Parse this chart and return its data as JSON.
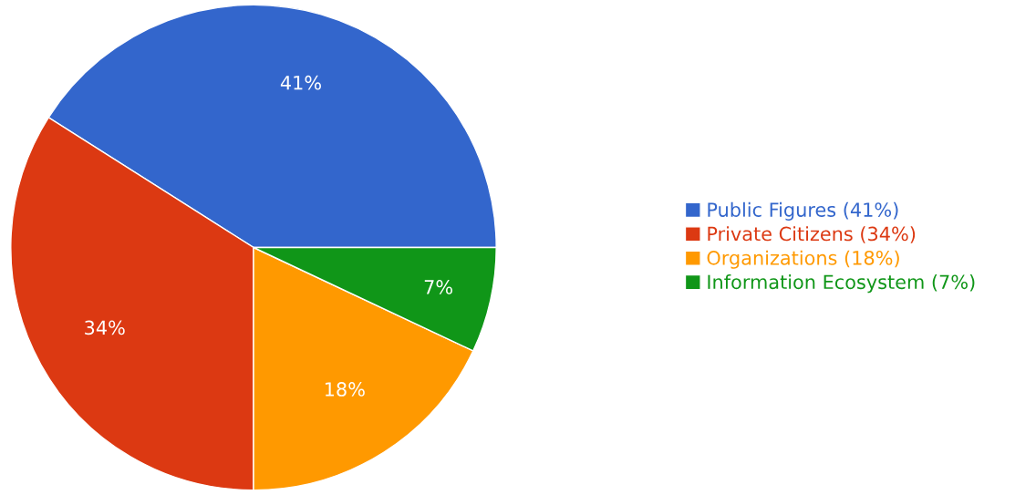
{
  "chart_data": {
    "type": "pie",
    "categories": [
      "Public Figures (41%)",
      "Private Citizens (34%)",
      "Organizations (18%)",
      "Information Ecosystem (7%)"
    ],
    "values": [
      41,
      34,
      18,
      7
    ],
    "colors": [
      "#3366cc",
      "#dc3912",
      "#ff9900",
      "#109618"
    ],
    "value_labels": [
      "41%",
      "34%",
      "18%",
      "7%"
    ],
    "legend": "right"
  }
}
